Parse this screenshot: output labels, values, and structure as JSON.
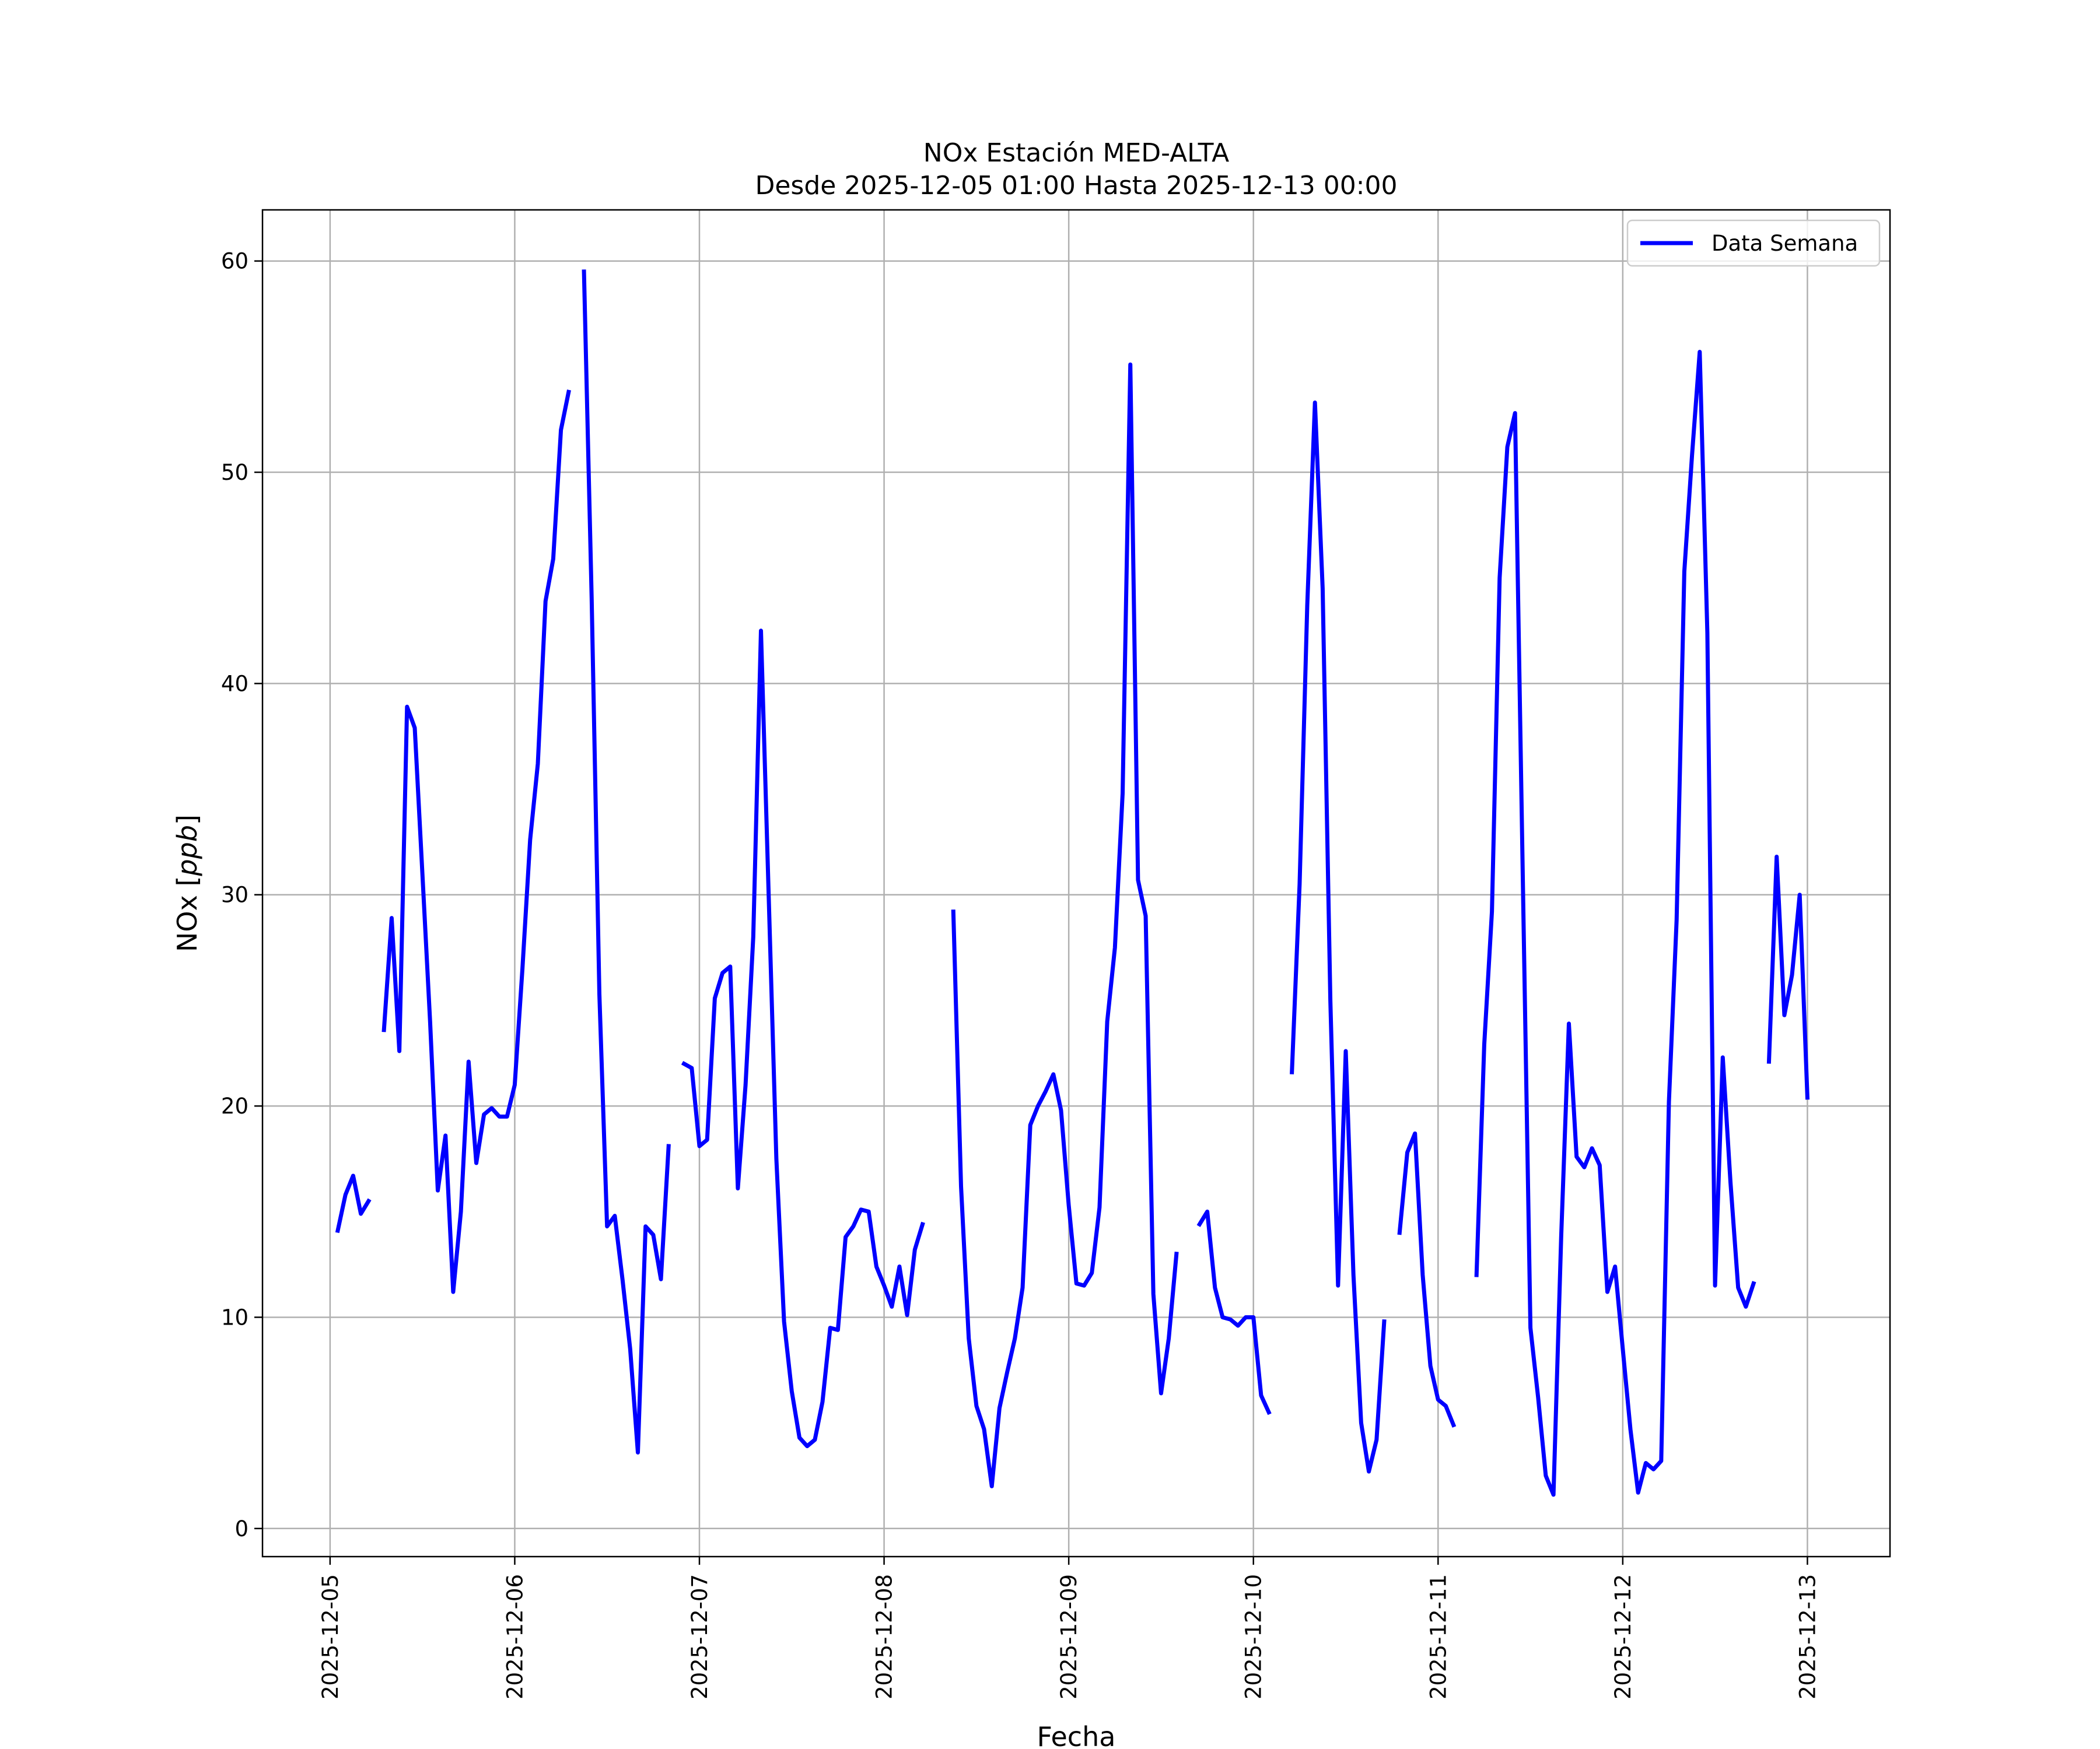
{
  "chart_data": {
    "type": "line",
    "title": "NOx Estación MED-ALTA",
    "subtitle": "Desde 2025-12-05 01:00 Hasta 2025-12-13 00:00",
    "xlabel": "Fecha",
    "ylabel": "NOx [ppb]",
    "ylabel_parts": {
      "prefix": "NOx [",
      "italic": "ppb",
      "suffix": "]"
    },
    "xlim": [
      "2025-12-04 15:13",
      "2025-12-13 10:44"
    ],
    "ylim": [
      -1.33,
      62.42
    ],
    "x_ticks": [
      "2025-12-05",
      "2025-12-06",
      "2025-12-07",
      "2025-12-08",
      "2025-12-09",
      "2025-12-10",
      "2025-12-11",
      "2025-12-12",
      "2025-12-13"
    ],
    "y_ticks": [
      0,
      10,
      20,
      30,
      40,
      50,
      60
    ],
    "grid": true,
    "legend": {
      "position": "top-right",
      "entries": [
        "Data Semana"
      ]
    },
    "colors": {
      "series": "#0000ff",
      "grid": "#b0b0b0"
    },
    "series": [
      {
        "name": "Data Semana",
        "segments": [
          [
            [
              "2025-12-05 01:00",
              14.1
            ],
            [
              "2025-12-05 02:00",
              15.8
            ],
            [
              "2025-12-05 03:00",
              16.7
            ],
            [
              "2025-12-05 04:00",
              14.9
            ],
            [
              "2025-12-05 05:00",
              15.5
            ]
          ],
          [
            [
              "2025-12-05 07:00",
              23.6
            ],
            [
              "2025-12-05 08:00",
              28.9
            ],
            [
              "2025-12-05 09:00",
              22.6
            ],
            [
              "2025-12-05 10:00",
              38.9
            ],
            [
              "2025-12-05 11:00",
              37.9
            ],
            [
              "2025-12-05 12:00",
              31.0
            ],
            [
              "2025-12-05 13:00",
              24.0
            ],
            [
              "2025-12-05 14:00",
              16.0
            ],
            [
              "2025-12-05 15:00",
              18.6
            ],
            [
              "2025-12-05 16:00",
              11.2
            ],
            [
              "2025-12-05 17:00",
              15.0
            ],
            [
              "2025-12-05 18:00",
              22.1
            ],
            [
              "2025-12-05 19:00",
              17.3
            ],
            [
              "2025-12-05 20:00",
              19.6
            ],
            [
              "2025-12-05 21:00",
              19.9
            ],
            [
              "2025-12-05 22:00",
              19.5
            ],
            [
              "2025-12-05 23:00",
              19.5
            ],
            [
              "2025-12-06 00:00",
              21.0
            ],
            [
              "2025-12-06 01:00",
              26.5
            ],
            [
              "2025-12-06 02:00",
              32.6
            ],
            [
              "2025-12-06 03:00",
              36.2
            ],
            [
              "2025-12-06 04:00",
              43.9
            ],
            [
              "2025-12-06 05:00",
              45.9
            ],
            [
              "2025-12-06 06:00",
              52.0
            ],
            [
              "2025-12-06 07:00",
              53.8
            ]
          ],
          [
            [
              "2025-12-06 09:00",
              59.5
            ],
            [
              "2025-12-06 10:00",
              44.0
            ],
            [
              "2025-12-06 11:00",
              25.3
            ],
            [
              "2025-12-06 12:00",
              14.3
            ],
            [
              "2025-12-06 13:00",
              14.8
            ],
            [
              "2025-12-06 14:00",
              11.8
            ],
            [
              "2025-12-06 15:00",
              8.5
            ],
            [
              "2025-12-06 16:00",
              3.6
            ],
            [
              "2025-12-06 17:00",
              14.3
            ],
            [
              "2025-12-06 18:00",
              13.9
            ],
            [
              "2025-12-06 19:00",
              11.8
            ],
            [
              "2025-12-06 20:00",
              18.1
            ]
          ],
          [
            [
              "2025-12-06 22:00",
              22.0
            ],
            [
              "2025-12-06 23:00",
              21.8
            ],
            [
              "2025-12-07 00:00",
              18.1
            ],
            [
              "2025-12-07 01:00",
              18.4
            ],
            [
              "2025-12-07 02:00",
              25.1
            ],
            [
              "2025-12-07 03:00",
              26.3
            ],
            [
              "2025-12-07 04:00",
              26.6
            ],
            [
              "2025-12-07 05:00",
              16.1
            ],
            [
              "2025-12-07 06:00",
              21.0
            ],
            [
              "2025-12-07 07:00",
              28.0
            ],
            [
              "2025-12-07 08:00",
              42.5
            ],
            [
              "2025-12-07 09:00",
              30.0
            ],
            [
              "2025-12-07 10:00",
              17.5
            ],
            [
              "2025-12-07 11:00",
              9.8
            ],
            [
              "2025-12-07 12:00",
              6.5
            ],
            [
              "2025-12-07 13:00",
              4.3
            ],
            [
              "2025-12-07 14:00",
              3.9
            ],
            [
              "2025-12-07 15:00",
              4.2
            ],
            [
              "2025-12-07 16:00",
              6.0
            ],
            [
              "2025-12-07 17:00",
              9.5
            ],
            [
              "2025-12-07 18:00",
              9.4
            ],
            [
              "2025-12-07 19:00",
              13.8
            ],
            [
              "2025-12-07 20:00",
              14.3
            ],
            [
              "2025-12-07 21:00",
              15.1
            ],
            [
              "2025-12-07 22:00",
              15.0
            ],
            [
              "2025-12-07 23:00",
              12.4
            ],
            [
              "2025-12-08 00:00",
              11.5
            ],
            [
              "2025-12-08 01:00",
              10.5
            ],
            [
              "2025-12-08 02:00",
              12.4
            ],
            [
              "2025-12-08 03:00",
              10.1
            ],
            [
              "2025-12-08 04:00",
              13.2
            ],
            [
              "2025-12-08 05:00",
              14.4
            ]
          ],
          [
            [
              "2025-12-08 09:00",
              29.2
            ],
            [
              "2025-12-08 10:00",
              16.2
            ],
            [
              "2025-12-08 11:00",
              9.0
            ],
            [
              "2025-12-08 12:00",
              5.8
            ],
            [
              "2025-12-08 13:00",
              4.7
            ],
            [
              "2025-12-08 14:00",
              2.0
            ],
            [
              "2025-12-08 15:00",
              5.7
            ],
            [
              "2025-12-08 16:00",
              7.4
            ],
            [
              "2025-12-08 17:00",
              9.0
            ],
            [
              "2025-12-08 18:00",
              11.4
            ],
            [
              "2025-12-08 19:00",
              19.1
            ],
            [
              "2025-12-08 20:00",
              20.0
            ],
            [
              "2025-12-08 21:00",
              20.7
            ],
            [
              "2025-12-08 22:00",
              21.5
            ],
            [
              "2025-12-08 23:00",
              19.8
            ],
            [
              "2025-12-09 00:00",
              15.3
            ],
            [
              "2025-12-09 01:00",
              11.6
            ],
            [
              "2025-12-09 02:00",
              11.5
            ],
            [
              "2025-12-09 03:00",
              12.1
            ],
            [
              "2025-12-09 04:00",
              15.2
            ],
            [
              "2025-12-09 05:00",
              24.0
            ],
            [
              "2025-12-09 06:00",
              27.5
            ],
            [
              "2025-12-09 07:00",
              34.8
            ],
            [
              "2025-12-09 08:00",
              55.1
            ],
            [
              "2025-12-09 09:00",
              30.7
            ],
            [
              "2025-12-09 10:00",
              29.0
            ],
            [
              "2025-12-09 11:00",
              11.1
            ],
            [
              "2025-12-09 12:00",
              6.4
            ],
            [
              "2025-12-09 13:00",
              9.0
            ],
            [
              "2025-12-09 14:00",
              13.0
            ]
          ],
          [
            [
              "2025-12-09 17:00",
              14.4
            ],
            [
              "2025-12-09 18:00",
              15.0
            ],
            [
              "2025-12-09 19:00",
              11.4
            ],
            [
              "2025-12-09 20:00",
              10.0
            ],
            [
              "2025-12-09 21:00",
              9.9
            ],
            [
              "2025-12-09 22:00",
              9.6
            ],
            [
              "2025-12-09 23:00",
              10.0
            ],
            [
              "2025-12-10 00:00",
              10.0
            ],
            [
              "2025-12-10 01:00",
              6.3
            ],
            [
              "2025-12-10 02:00",
              5.5
            ]
          ],
          [
            [
              "2025-12-10 05:00",
              21.6
            ],
            [
              "2025-12-10 06:00",
              30.5
            ],
            [
              "2025-12-10 07:00",
              43.7
            ],
            [
              "2025-12-10 08:00",
              53.3
            ],
            [
              "2025-12-10 09:00",
              44.5
            ],
            [
              "2025-12-10 10:00",
              25.0
            ],
            [
              "2025-12-10 11:00",
              11.5
            ],
            [
              "2025-12-10 12:00",
              22.6
            ],
            [
              "2025-12-10 13:00",
              12.0
            ],
            [
              "2025-12-10 14:00",
              5.0
            ],
            [
              "2025-12-10 15:00",
              2.7
            ],
            [
              "2025-12-10 16:00",
              4.2
            ],
            [
              "2025-12-10 17:00",
              9.8
            ]
          ],
          [
            [
              "2025-12-10 19:00",
              14.0
            ],
            [
              "2025-12-10 20:00",
              17.8
            ],
            [
              "2025-12-10 21:00",
              18.7
            ],
            [
              "2025-12-10 22:00",
              12.0
            ],
            [
              "2025-12-10 23:00",
              7.7
            ],
            [
              "2025-12-11 00:00",
              6.1
            ],
            [
              "2025-12-11 01:00",
              5.8
            ],
            [
              "2025-12-11 02:00",
              4.9
            ]
          ],
          [
            [
              "2025-12-11 05:00",
              12.0
            ],
            [
              "2025-12-11 06:00",
              22.9
            ],
            [
              "2025-12-11 07:00",
              29.2
            ],
            [
              "2025-12-11 08:00",
              45.0
            ],
            [
              "2025-12-11 09:00",
              51.2
            ],
            [
              "2025-12-11 10:00",
              52.8
            ],
            [
              "2025-12-11 11:00",
              31.0
            ],
            [
              "2025-12-11 12:00",
              9.5
            ],
            [
              "2025-12-11 13:00",
              6.2
            ],
            [
              "2025-12-11 14:00",
              2.5
            ],
            [
              "2025-12-11 15:00",
              1.6
            ],
            [
              "2025-12-11 16:00",
              13.8
            ],
            [
              "2025-12-11 17:00",
              23.9
            ],
            [
              "2025-12-11 18:00",
              17.6
            ],
            [
              "2025-12-11 19:00",
              17.1
            ],
            [
              "2025-12-11 20:00",
              18.0
            ],
            [
              "2025-12-11 21:00",
              17.2
            ],
            [
              "2025-12-11 22:00",
              11.2
            ],
            [
              "2025-12-11 23:00",
              12.4
            ],
            [
              "2025-12-12 00:00",
              8.5
            ],
            [
              "2025-12-12 01:00",
              4.7
            ],
            [
              "2025-12-12 02:00",
              1.7
            ],
            [
              "2025-12-12 03:00",
              3.1
            ],
            [
              "2025-12-12 04:00",
              2.8
            ],
            [
              "2025-12-12 05:00",
              3.2
            ],
            [
              "2025-12-12 06:00",
              20.2
            ],
            [
              "2025-12-12 07:00",
              28.8
            ],
            [
              "2025-12-12 08:00",
              45.3
            ],
            [
              "2025-12-12 09:00",
              50.8
            ],
            [
              "2025-12-12 10:00",
              55.7
            ],
            [
              "2025-12-12 11:00",
              42.4
            ],
            [
              "2025-12-12 12:00",
              11.5
            ],
            [
              "2025-12-12 13:00",
              22.3
            ],
            [
              "2025-12-12 14:00",
              16.4
            ],
            [
              "2025-12-12 15:00",
              11.4
            ],
            [
              "2025-12-12 16:00",
              10.5
            ],
            [
              "2025-12-12 17:00",
              11.6
            ]
          ],
          [
            [
              "2025-12-12 19:00",
              22.1
            ],
            [
              "2025-12-12 20:00",
              31.8
            ],
            [
              "2025-12-12 21:00",
              24.3
            ],
            [
              "2025-12-12 22:00",
              26.2
            ],
            [
              "2025-12-12 23:00",
              30.0
            ],
            [
              "2025-12-13 00:00",
              20.4
            ]
          ]
        ]
      }
    ]
  }
}
